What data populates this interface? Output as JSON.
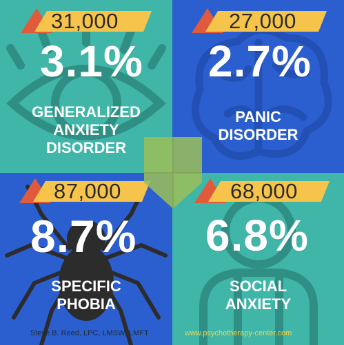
{
  "colors": {
    "teal": "#3fb6a8",
    "blue": "#2b5fd0",
    "banner_yellow": "#f6c44a",
    "banner_red": "#e25a3c",
    "center_green": "#9bbf5a",
    "spider": "#2c2c2c"
  },
  "stats": [
    {
      "count": "31,000",
      "percent": "3.1%",
      "label_lines": [
        "GENERALIZED",
        "ANXIETY",
        "DISORDER"
      ],
      "icon": "eye-icon"
    },
    {
      "count": "27,000",
      "percent": "2.7%",
      "label_lines": [
        "PANIC",
        "DISORDER"
      ],
      "icon": "brain-icon"
    },
    {
      "count": "87,000",
      "percent": "8.7%",
      "label_lines": [
        "SPECIFIC",
        "PHOBIA"
      ],
      "icon": "spider-icon"
    },
    {
      "count": "68,000",
      "percent": "6.8%",
      "label_lines": [
        "SOCIAL",
        "ANXIETY"
      ],
      "icon": "person-icon"
    }
  ],
  "footer": {
    "author": "Steve B. Reed, LPC, LMSW, LMFT",
    "website": "www.psychotherapy-center.com"
  }
}
